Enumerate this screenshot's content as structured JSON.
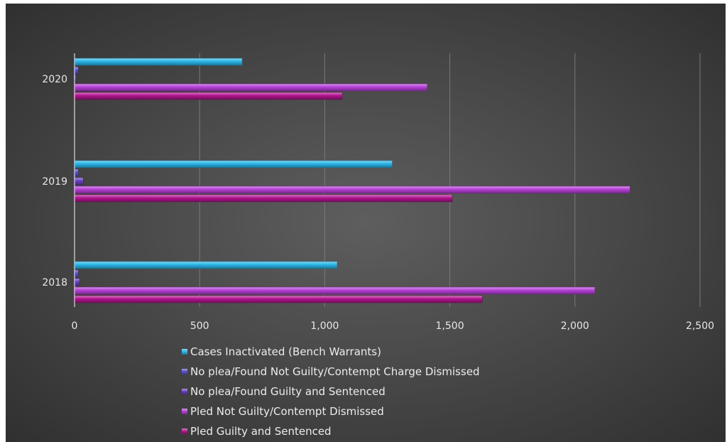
{
  "chart_data": {
    "type": "bar",
    "orientation": "horizontal",
    "categories": [
      "2018",
      "2019",
      "2020"
    ],
    "series": [
      {
        "name": "Cases Inactivated (Bench Warrants)",
        "color": "#2ab4e6",
        "values": [
          1050,
          1270,
          670
        ]
      },
      {
        "name": "No plea/Found Not Guilty/Contempt Charge Dismissed",
        "color": "#5a4fcf",
        "values": [
          15,
          15,
          15
        ]
      },
      {
        "name": "No plea/Found Guilty and Sentenced",
        "color": "#6a3fc4",
        "values": [
          20,
          35,
          5
        ]
      },
      {
        "name": "Pled Not Guilty/Contempt Dismissed",
        "color": "#b53fd6",
        "values": [
          2080,
          2220,
          1410
        ]
      },
      {
        "name": "Pled Guilty and Sentenced",
        "color": "#b0148e",
        "values": [
          1630,
          1510,
          1070
        ]
      }
    ],
    "x_ticks": [
      "0",
      "500",
      "1,000",
      "1,500",
      "2,000",
      "2,500"
    ],
    "xlim": [
      0,
      2500
    ],
    "grid": true,
    "legend_position": "bottom"
  }
}
